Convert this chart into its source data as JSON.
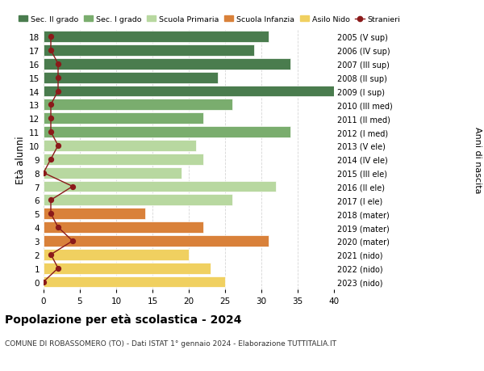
{
  "ages": [
    18,
    17,
    16,
    15,
    14,
    13,
    12,
    11,
    10,
    9,
    8,
    7,
    6,
    5,
    4,
    3,
    2,
    1,
    0
  ],
  "right_labels": [
    "2005 (V sup)",
    "2006 (IV sup)",
    "2007 (III sup)",
    "2008 (II sup)",
    "2009 (I sup)",
    "2010 (III med)",
    "2011 (II med)",
    "2012 (I med)",
    "2013 (V ele)",
    "2014 (IV ele)",
    "2015 (III ele)",
    "2016 (II ele)",
    "2017 (I ele)",
    "2018 (mater)",
    "2019 (mater)",
    "2020 (mater)",
    "2021 (nido)",
    "2022 (nido)",
    "2023 (nido)"
  ],
  "bar_values": [
    31,
    29,
    34,
    24,
    41,
    26,
    22,
    34,
    21,
    22,
    19,
    32,
    26,
    14,
    22,
    31,
    20,
    23,
    25
  ],
  "bar_colors": [
    "#4a7c4e",
    "#4a7c4e",
    "#4a7c4e",
    "#4a7c4e",
    "#4a7c4e",
    "#7aad6e",
    "#7aad6e",
    "#7aad6e",
    "#b8d8a0",
    "#b8d8a0",
    "#b8d8a0",
    "#b8d8a0",
    "#b8d8a0",
    "#d9813a",
    "#d9813a",
    "#d9813a",
    "#f0d060",
    "#f0d060",
    "#f0d060"
  ],
  "stranieri_values": [
    1,
    1,
    2,
    2,
    2,
    1,
    1,
    1,
    2,
    1,
    0,
    4,
    1,
    1,
    2,
    4,
    1,
    2,
    0
  ],
  "legend_labels": [
    "Sec. II grado",
    "Sec. I grado",
    "Scuola Primaria",
    "Scuola Infanzia",
    "Asilo Nido",
    "Stranieri"
  ],
  "legend_colors": [
    "#4a7c4e",
    "#7aad6e",
    "#b8d8a0",
    "#d9813a",
    "#f0d060",
    "#b22222"
  ],
  "title": "Popolazione per età scolastica - 2024",
  "subtitle": "COMUNE DI ROBASSOMERO (TO) - Dati ISTAT 1° gennaio 2024 - Elaborazione TUTTITALIA.IT",
  "ylabel": "Età alunni",
  "right_ylabel": "Anni di nascita",
  "xlim": [
    0,
    40
  ],
  "xticks": [
    0,
    5,
    10,
    15,
    20,
    25,
    30,
    35,
    40
  ],
  "background_color": "#ffffff",
  "grid_color": "#cccccc"
}
